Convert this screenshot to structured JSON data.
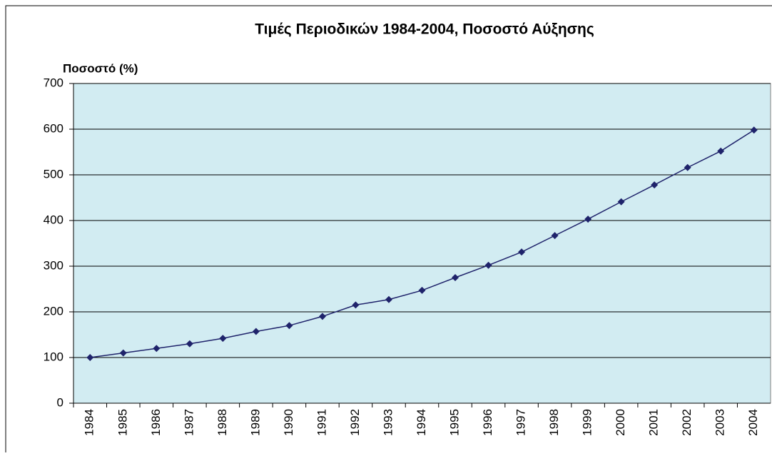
{
  "chart_data": {
    "type": "line",
    "title": "Τιμές Περιοδικών 1984-2004, Ποσοστό Αύξησης",
    "y_label": "Ποσοστό (%)",
    "categories": [
      "1984",
      "1985",
      "1986",
      "1987",
      "1988",
      "1989",
      "1990",
      "1991",
      "1992",
      "1993",
      "1994",
      "1995",
      "1996",
      "1997",
      "1998",
      "1999",
      "2000",
      "2001",
      "2002",
      "2003",
      "2004"
    ],
    "series": [
      {
        "name": "Ποσοστό",
        "color": "#1f236b",
        "values": [
          100,
          110,
          120,
          130,
          142,
          157,
          170,
          190,
          215,
          227,
          247,
          275,
          302,
          331,
          367,
          403,
          441,
          478,
          516,
          552,
          598
        ]
      }
    ],
    "ylim": [
      0,
      700
    ],
    "yticks": [
      0,
      100,
      200,
      300,
      400,
      500,
      600,
      700
    ],
    "grid": true,
    "background": "#d2ecf2"
  }
}
